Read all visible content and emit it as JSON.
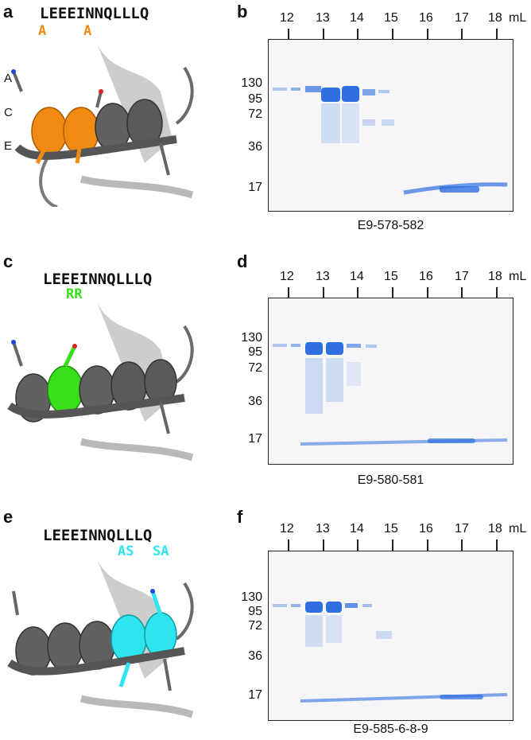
{
  "panels": {
    "a": "a",
    "b": "b",
    "c": "c",
    "d": "d",
    "e": "e",
    "f": "f"
  },
  "sequence": "LEEEINNQLLLQ",
  "mutations": {
    "a_1": "A",
    "a_2": "A",
    "c_1": "RR",
    "e_1": "AS",
    "e_2": "SA"
  },
  "side_labels": [
    "A",
    "C",
    "E"
  ],
  "volume_ticks": [
    "12",
    "13",
    "14",
    "15",
    "16",
    "17",
    "18"
  ],
  "volume_unit": "mL",
  "mw_markers": [
    "130",
    "95",
    "72",
    "36",
    "17"
  ],
  "gel_captions": {
    "b": "E9-578-582",
    "d": "E9-580-581",
    "f": "E9-585-6-8-9"
  },
  "colors": {
    "orange": "#f08a12",
    "green": "#38e01c",
    "cyan": "#2ee4ee",
    "gray_helix": "#5a5a5a",
    "gel_band": "#2f6fe0"
  }
}
